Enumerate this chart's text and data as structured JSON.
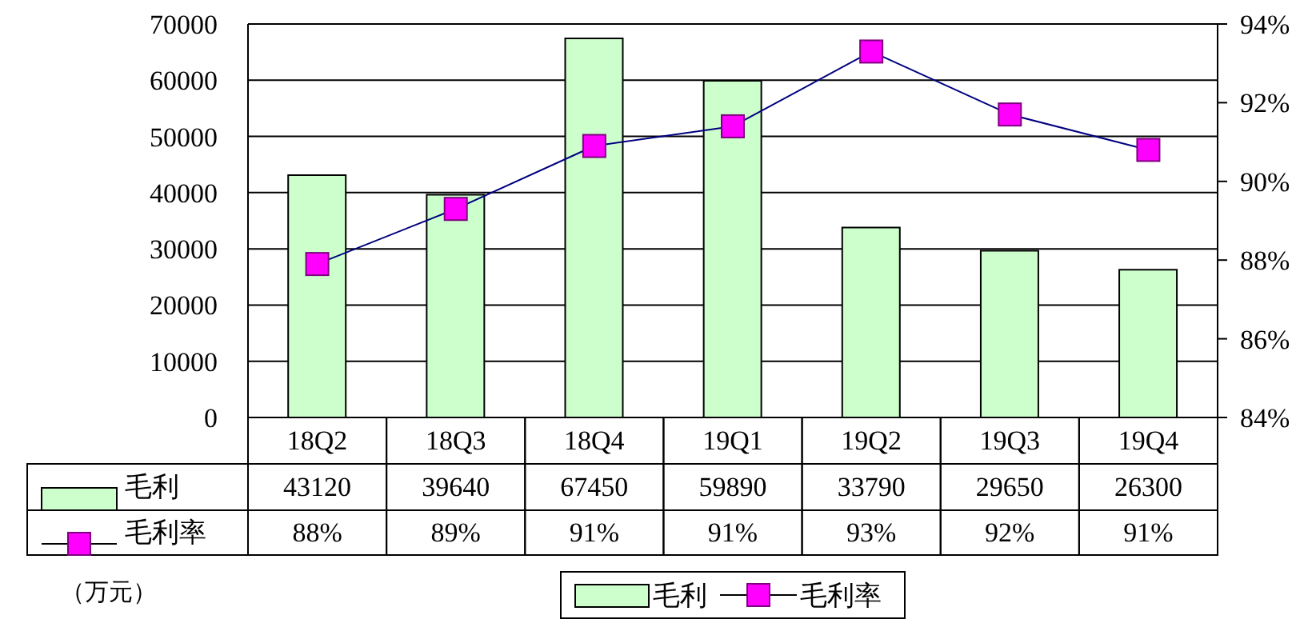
{
  "chart_data": {
    "type": "bar",
    "categories": [
      "18Q2",
      "18Q3",
      "18Q4",
      "19Q1",
      "19Q2",
      "19Q3",
      "19Q4"
    ],
    "series": [
      {
        "name": "毛利",
        "color": "#ccffcc",
        "values": [
          43120,
          39640,
          67450,
          59890,
          33790,
          29650,
          26300
        ],
        "value_labels": [
          "43120",
          "39640",
          "67450",
          "59890",
          "33790",
          "29650",
          "26300"
        ]
      },
      {
        "name": "毛利率",
        "type": "line",
        "axis": "y2",
        "color": "#ff00ff",
        "values": [
          87.9,
          89.3,
          90.9,
          91.4,
          93.3,
          91.7,
          90.8
        ],
        "value_labels": [
          "88%",
          "89%",
          "91%",
          "91%",
          "93%",
          "92%",
          "91%"
        ]
      }
    ],
    "ylim": [
      0,
      70000
    ],
    "yticks": [
      0,
      10000,
      20000,
      30000,
      40000,
      50000,
      60000,
      70000
    ],
    "y2lim": [
      84,
      94
    ],
    "y2ticks": [
      {
        "value": 84,
        "label": "84%"
      },
      {
        "value": 86,
        "label": "86%"
      },
      {
        "value": 88,
        "label": "88%"
      },
      {
        "value": 90,
        "label": "90%"
      },
      {
        "value": 92,
        "label": "92%"
      },
      {
        "value": 94,
        "label": "94%"
      }
    ],
    "grid": "y",
    "legend": "bottom",
    "marker": "square",
    "annotations": [
      "（万元）"
    ]
  }
}
